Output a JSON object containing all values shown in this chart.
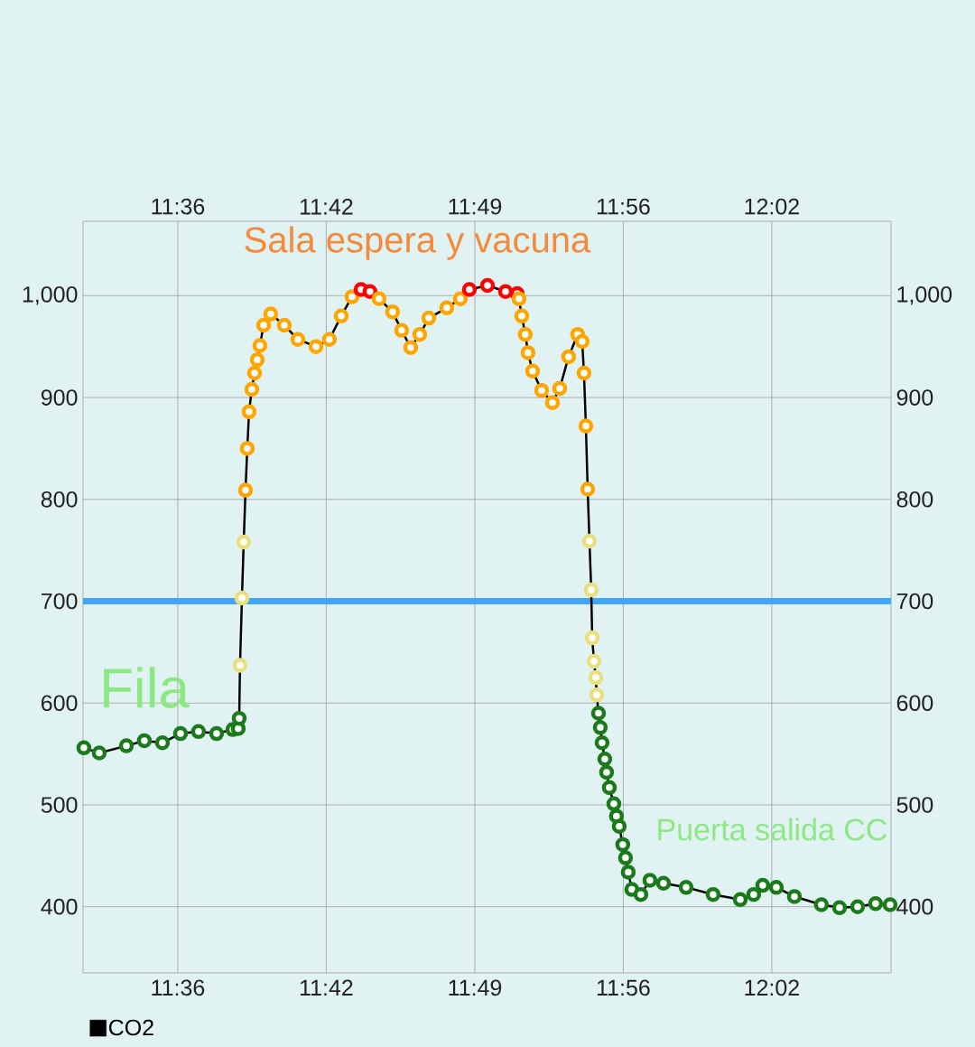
{
  "chart_data": {
    "type": "line",
    "annotations": [
      "Sala espera y vacuna",
      "Fila",
      "Puerta salida CC"
    ],
    "xlim": [
      11.5309,
      12.1203
    ],
    "xticks": [
      {
        "value": 11.6,
        "label": "11:36"
      },
      {
        "value": 11.7083,
        "label": "11:42"
      },
      {
        "value": 11.8167,
        "label": "11:49"
      },
      {
        "value": 11.925,
        "label": "11:56"
      },
      {
        "value": 12.0333,
        "label": "12:02"
      }
    ],
    "x2lim": [
      11.5309,
      12.1203
    ],
    "x2ticks": [
      {
        "value": 11.6,
        "label": "11:36"
      },
      {
        "value": 11.7083,
        "label": "11:42"
      },
      {
        "value": 11.8167,
        "label": "11:49"
      },
      {
        "value": 11.925,
        "label": "11:56"
      },
      {
        "value": 12.0333,
        "label": "12:02"
      }
    ],
    "ylim": [
      335,
      1073
    ],
    "yticks": [
      400,
      500,
      600,
      700,
      800,
      900,
      {
        "value": 1000,
        "label": "1,000"
      }
    ],
    "y2lim": [
      335,
      1073
    ],
    "y2ticks": [
      400,
      500,
      600,
      700,
      800,
      900,
      {
        "value": 1000,
        "label": "1,000"
      }
    ],
    "grid": true,
    "legend": "bottom left",
    "marker": "circle",
    "line_style": "solid",
    "ref_lines": [
      {
        "axis": "y",
        "value": 700,
        "color": "#42a5f5"
      }
    ],
    "series": [
      {
        "name": "CO2",
        "color": "#000000",
        "x": [
          11.5315,
          11.5427,
          11.5625,
          11.5756,
          11.5888,
          11.602,
          11.6151,
          11.6283,
          11.6402,
          11.6441,
          11.6448,
          11.6454,
          11.6468,
          11.6481,
          11.6494,
          11.6507,
          11.652,
          11.654,
          11.656,
          11.658,
          11.6599,
          11.6626,
          11.6678,
          11.6777,
          11.6876,
          11.7008,
          11.7106,
          11.7192,
          11.7271,
          11.7337,
          11.7402,
          11.7468,
          11.7567,
          11.7633,
          11.7699,
          11.7765,
          11.7831,
          11.7962,
          11.8061,
          11.8127,
          11.8259,
          11.8391,
          11.8476,
          11.8489,
          11.8509,
          11.8535,
          11.8555,
          11.8588,
          11.8654,
          11.8733,
          11.8786,
          11.8851,
          11.8917,
          11.895,
          11.8963,
          11.8977,
          11.899,
          11.9003,
          11.9016,
          11.9023,
          11.9036,
          11.9049,
          11.9056,
          11.9069,
          11.9082,
          11.9095,
          11.9115,
          11.9128,
          11.9148,
          11.9181,
          11.92,
          11.922,
          11.9246,
          11.9266,
          11.9286,
          11.9312,
          11.9378,
          11.9444,
          11.9543,
          11.9708,
          11.9905,
          12.0103,
          12.0201,
          12.0267,
          12.0366,
          12.0498,
          12.0695,
          12.0827,
          12.0959,
          12.109,
          12.1196
        ],
        "values": [
          556,
          551,
          558,
          563,
          561,
          570,
          572,
          570,
          574,
          575,
          585,
          637,
          703,
          758,
          809,
          850,
          886,
          908,
          924,
          937,
          951,
          971,
          982,
          971,
          957,
          950,
          957,
          980,
          999,
          1006,
          1004,
          997,
          984,
          966,
          949,
          962,
          978,
          988,
          997,
          1006,
          1010,
          1004,
          1002,
          997,
          980,
          962,
          944,
          926,
          907,
          895,
          909,
          940,
          962,
          955,
          924,
          872,
          810,
          759,
          711,
          664,
          641,
          625,
          608,
          590,
          576,
          561,
          545,
          532,
          517,
          501,
          489,
          479,
          461,
          448,
          434,
          417,
          412,
          426,
          423,
          419,
          412,
          407,
          412,
          421,
          419,
          410,
          402,
          399,
          400,
          403,
          402
        ],
        "colors": [
          "#1b7a1b",
          "#1b7a1b",
          "#1b7a1b",
          "#1b7a1b",
          "#1b7a1b",
          "#1b7a1b",
          "#1b7a1b",
          "#1b7a1b",
          "#1b7a1b",
          "#1b7a1b",
          "#1b7a1b",
          "#e8e07e",
          "#e8e07e",
          "#e8e07e",
          "#ffa500",
          "#ffa500",
          "#ffa500",
          "#ffa500",
          "#ffa500",
          "#ffa500",
          "#ffa500",
          "#ffa500",
          "#ffa500",
          "#ffa500",
          "#ffa500",
          "#ffa500",
          "#ffa500",
          "#ffa500",
          "#ffa500",
          "#ff0000",
          "#ff0000",
          "#ffa500",
          "#ffa500",
          "#ffa500",
          "#ffa500",
          "#ffa500",
          "#ffa500",
          "#ffa500",
          "#ffa500",
          "#ff0000",
          "#ff0000",
          "#ff0000",
          "#ff0000",
          "#ffa500",
          "#ffa500",
          "#ffa500",
          "#ffa500",
          "#ffa500",
          "#ffa500",
          "#ffa500",
          "#ffa500",
          "#ffa500",
          "#ffa500",
          "#ffa500",
          "#ffa500",
          "#ffa500",
          "#ffa500",
          "#e8e07e",
          "#e8e07e",
          "#e8e07e",
          "#e8e07e",
          "#e8e07e",
          "#e8e07e",
          "#1b7a1b",
          "#1b7a1b",
          "#1b7a1b",
          "#1b7a1b",
          "#1b7a1b",
          "#1b7a1b",
          "#1b7a1b",
          "#1b7a1b",
          "#1b7a1b",
          "#1b7a1b",
          "#1b7a1b",
          "#1b7a1b",
          "#1b7a1b",
          "#1b7a1b",
          "#1b7a1b",
          "#1b7a1b",
          "#1b7a1b",
          "#1b7a1b",
          "#1b7a1b",
          "#1b7a1b",
          "#1b7a1b",
          "#1b7a1b",
          "#1b7a1b",
          "#1b7a1b",
          "#1b7a1b",
          "#1b7a1b",
          "#1b7a1b",
          "#1b7a1b"
        ]
      }
    ]
  }
}
